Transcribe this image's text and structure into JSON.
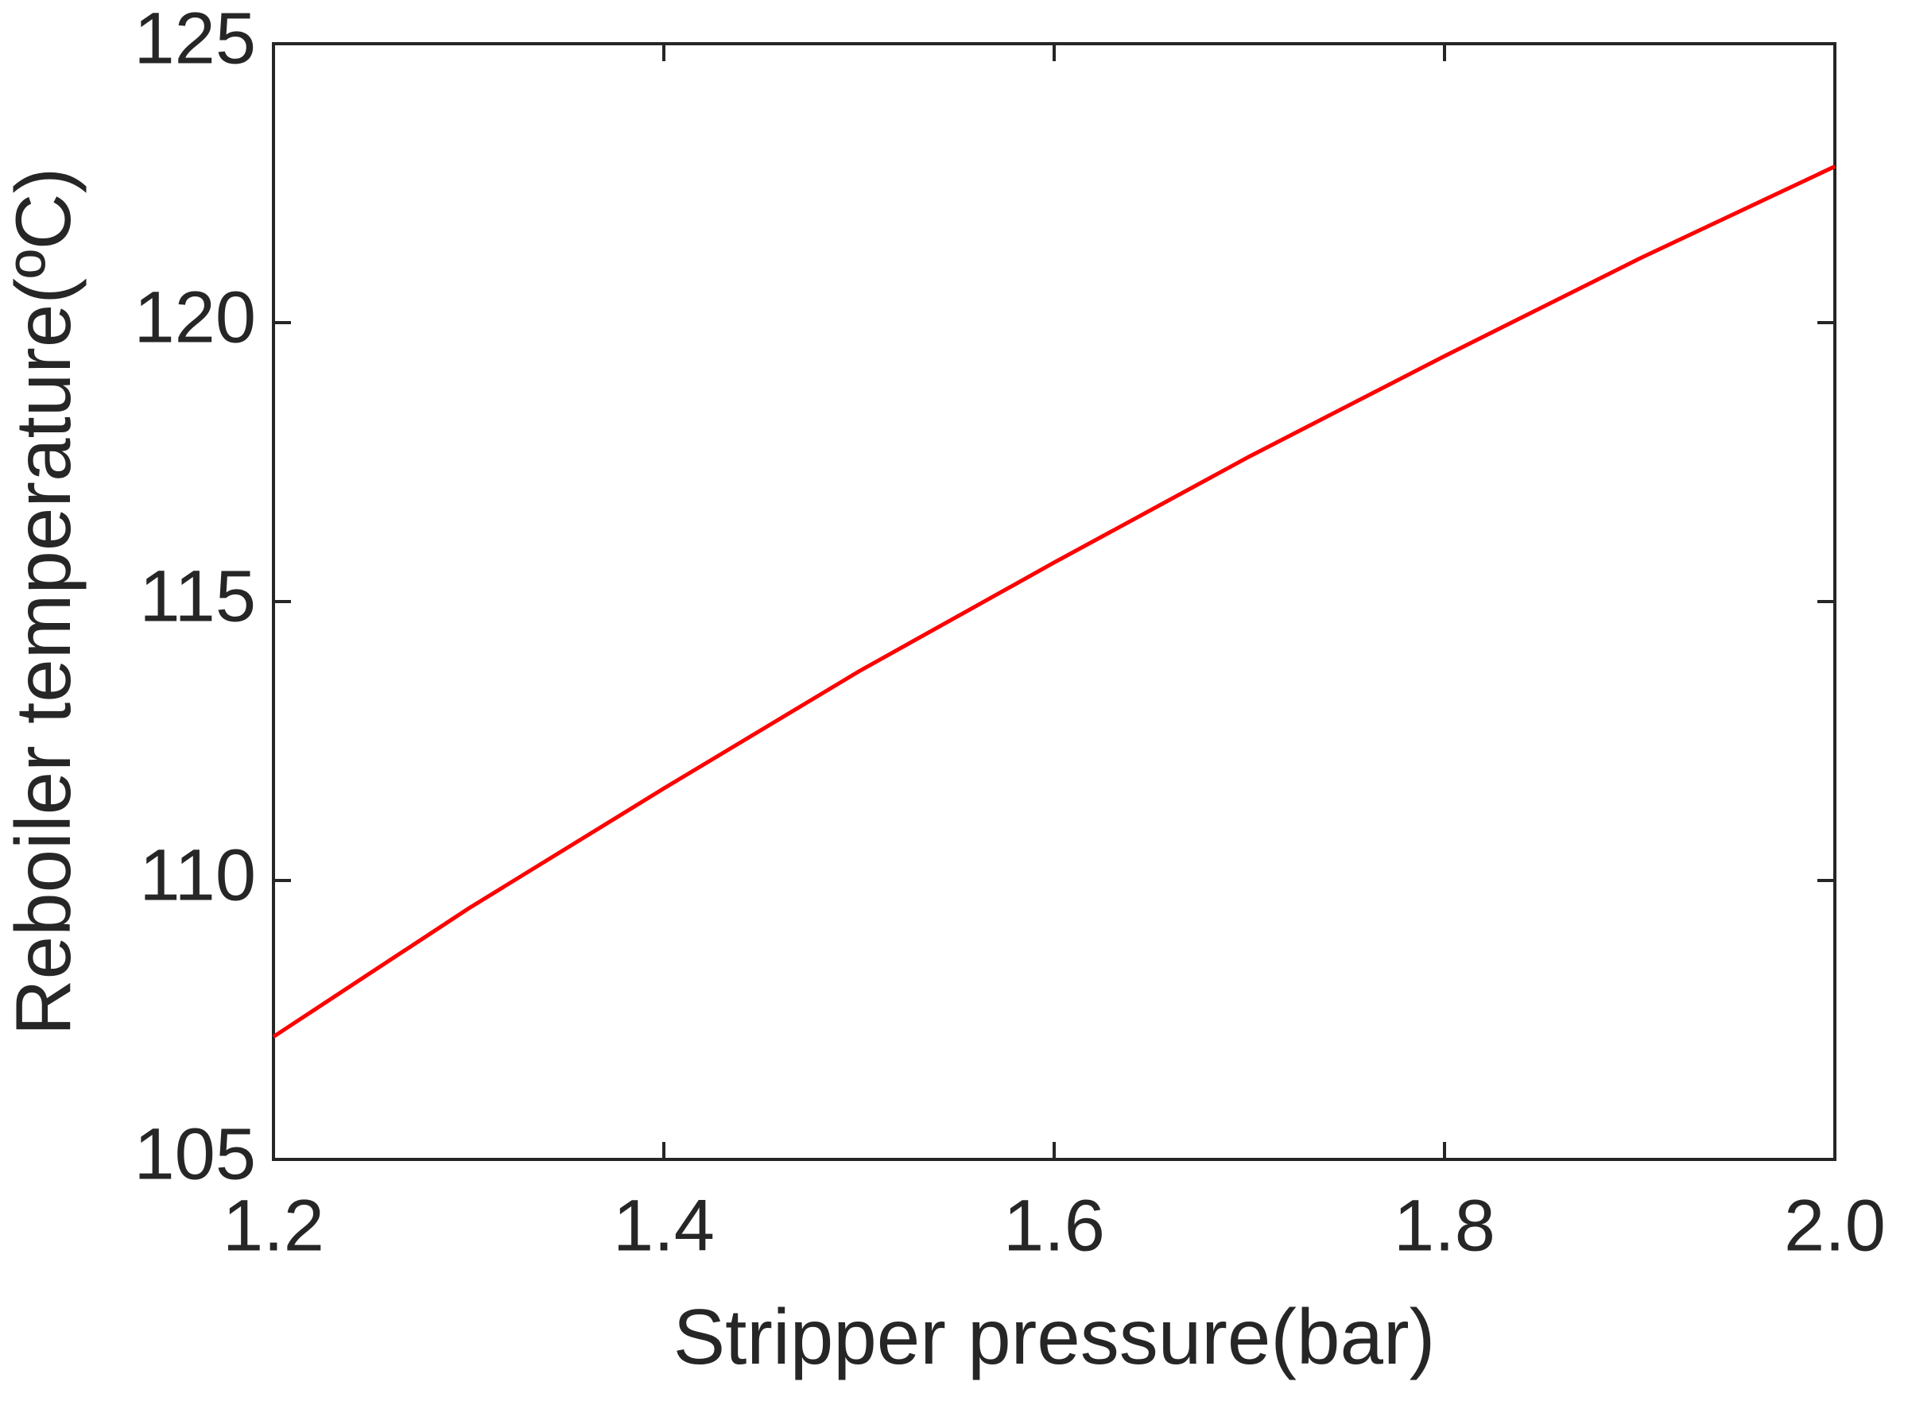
{
  "chart_data": {
    "type": "line",
    "x_label": "Stripper pressure(bar)",
    "y_label": "Reboiler temperature(ºC)",
    "x": [
      1.2,
      1.3,
      1.4,
      1.5,
      1.6,
      1.7,
      1.8,
      1.9,
      2.0
    ],
    "series": [
      {
        "color": "#ff0000",
        "values": [
          107.2,
          109.5,
          111.65,
          113.75,
          115.7,
          117.6,
          119.4,
          121.15,
          122.8
        ]
      }
    ],
    "xlim": [
      1.2,
      2.0
    ],
    "xticks": [
      1.2,
      1.4,
      1.6,
      1.8,
      {
        "value": 2.0,
        "label": "2.0"
      }
    ],
    "ylim": [
      105,
      125
    ],
    "yticks": [
      105,
      110,
      115,
      120,
      125
    ],
    "grid": false
  }
}
